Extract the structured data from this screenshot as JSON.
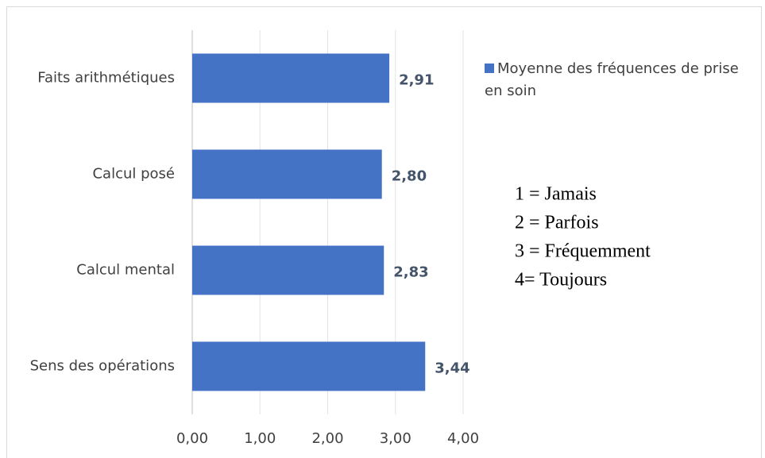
{
  "chart_data": {
    "type": "bar",
    "orientation": "horizontal",
    "categories": [
      "Faits arithmétiques",
      "Calcul posé",
      "Calcul mental",
      "Sens des opérations"
    ],
    "series": [
      {
        "name": "Moyenne des fréquences de prise en soin",
        "color": "#4472c4",
        "values": [
          2.91,
          2.8,
          2.83,
          3.44
        ],
        "value_labels": [
          "2,91",
          "2,80",
          "2,83",
          "3,44"
        ]
      }
    ],
    "xlim": [
      0,
      4
    ],
    "xticks": [
      {
        "value": 0,
        "label": "0,00"
      },
      {
        "value": 1,
        "label": "1,00"
      },
      {
        "value": 2,
        "label": "2,00"
      },
      {
        "value": 3,
        "label": "3,00"
      },
      {
        "value": 4,
        "label": "4,00"
      }
    ],
    "grid": true,
    "legend": "right",
    "annotations": [
      "1 = Jamais",
      "2 = Parfois",
      "3 = Fréquemment",
      "4= Toujours"
    ]
  }
}
